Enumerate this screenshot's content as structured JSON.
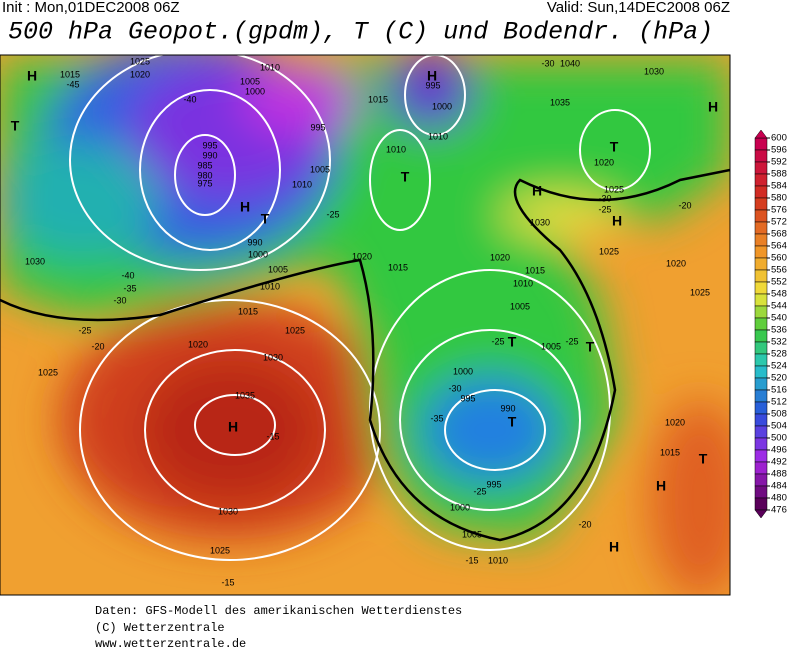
{
  "header": {
    "init": "Init : Mon,01DEC2008 06Z",
    "valid": "Valid: Sun,14DEC2008 06Z",
    "title": "500 hPa Geopot.(gpdm), T (C) und Bodendr. (hPa)"
  },
  "map_labels": [
    "H",
    "T",
    "1015",
    "1025",
    "1020",
    "1010",
    "1005",
    "1000",
    "-45",
    "-40",
    "995",
    "990",
    "985",
    "980",
    "975",
    "H",
    "T",
    "1010",
    "1005",
    "995",
    "-25",
    "990",
    "1000",
    "1005",
    "1010",
    "1030",
    "-40",
    "-35",
    "-30",
    "1015",
    "1025",
    "1020",
    "-25",
    "-20",
    "1025",
    "1030",
    "1035",
    "H",
    "-15",
    "1030",
    "1025",
    "-15",
    "H",
    "995",
    "1000",
    "1015",
    "1010",
    "1010",
    "T",
    "1020",
    "1015",
    "-30",
    "1040",
    "1030",
    "1035",
    "T",
    "1020",
    "1025",
    "-30",
    "-25",
    "H",
    "1030",
    "H",
    "1025",
    "1020",
    "-20",
    "1020",
    "1015",
    "1010",
    "1005",
    "-25",
    "T",
    "1005",
    "-25",
    "T",
    "1000",
    "-30",
    "995",
    "990",
    "T",
    "-35",
    "995",
    "-25",
    "1000",
    "1005",
    "-20",
    "-15",
    "1010",
    "H",
    "H",
    "H",
    "T",
    "1015",
    "1020",
    "1025"
  ],
  "colorbar": {
    "ticks": [
      600,
      596,
      592,
      588,
      584,
      580,
      576,
      572,
      568,
      564,
      560,
      556,
      552,
      548,
      544,
      540,
      536,
      532,
      528,
      524,
      520,
      516,
      512,
      508,
      504,
      500,
      496,
      492,
      488,
      484,
      480,
      476
    ]
  },
  "footer": [
    "Daten: GFS-Modell des amerikanischen Wetterdienstes",
    "(C) Wetterzentrale",
    "www.wetterzentrale.de"
  ]
}
